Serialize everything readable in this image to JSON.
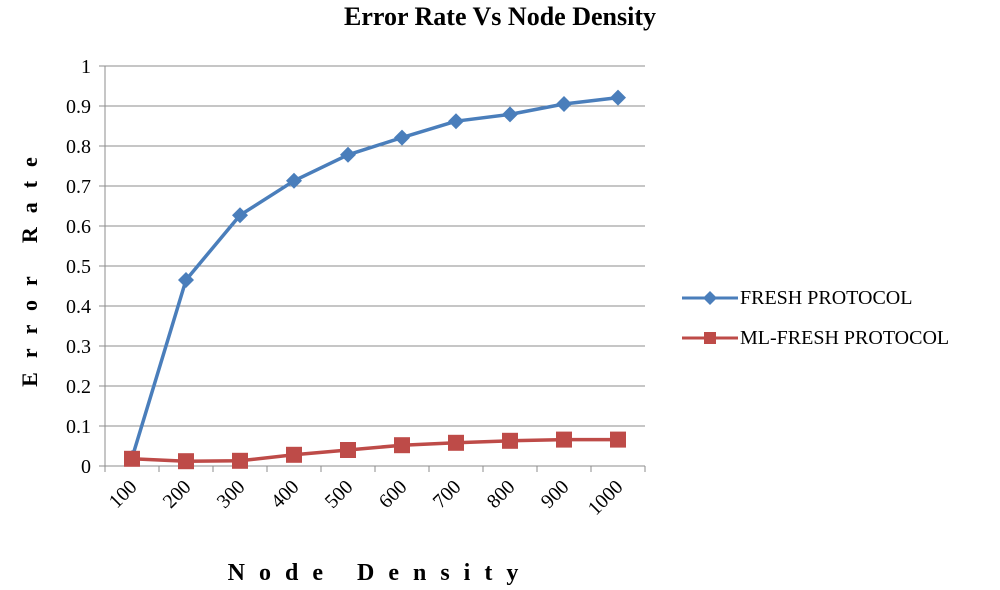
{
  "chart_data": {
    "type": "line",
    "title": "Error Rate Vs Node Density",
    "xlabel": "Node Density",
    "ylabel": "Error Rate",
    "categories": [
      "100",
      "200",
      "300",
      "400",
      "500",
      "600",
      "700",
      "800",
      "900",
      "1000"
    ],
    "ylim": [
      0,
      1
    ],
    "yticks": [
      "0",
      "0.1",
      "0.2",
      "0.3",
      "0.4",
      "0.5",
      "0.6",
      "0.7",
      "0.8",
      "0.9",
      "1"
    ],
    "grid": true,
    "legend_position": "right",
    "series": [
      {
        "name": "FRESH PROTOCOL",
        "color": "#4a7ebb",
        "marker": "diamond",
        "values": [
          0.02,
          0.465,
          0.627,
          0.713,
          0.778,
          0.821,
          0.862,
          0.879,
          0.905,
          0.921
        ]
      },
      {
        "name": "ML-FRESH PROTOCOL",
        "color": "#be4b48",
        "marker": "square",
        "values": [
          0.018,
          0.012,
          0.013,
          0.028,
          0.04,
          0.052,
          0.058,
          0.063,
          0.066,
          0.066
        ]
      }
    ]
  }
}
